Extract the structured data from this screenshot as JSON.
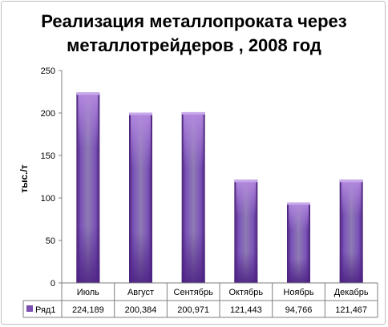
{
  "chart_data": {
    "type": "bar",
    "title_line1": "Реализация металлопроката через",
    "title_line2": "металлотрейдеров , 2008 год",
    "ylabel": "тыс./т",
    "categories": [
      "Июль",
      "Август",
      "Сентябрь",
      "Октябрь",
      "Ноябрь",
      "Декабрь"
    ],
    "series": [
      {
        "name": "Ряд1",
        "values": [
          224.189,
          200.384,
          200.971,
          121.443,
          94.766,
          121.467
        ],
        "labels": [
          "224,189",
          "200,384",
          "200,971",
          "121,443",
          "94,766",
          "121,467"
        ]
      }
    ],
    "ylim": [
      0,
      250
    ],
    "yticks": [
      0,
      50,
      100,
      150,
      200,
      250
    ],
    "grid": false,
    "data_table": true,
    "colors": {
      "bar_dark": "#5b2f8f",
      "bar_light": "#a67cd6",
      "bar_mid": "#7d6aa8",
      "legend_key": "#7b4fb0"
    }
  }
}
